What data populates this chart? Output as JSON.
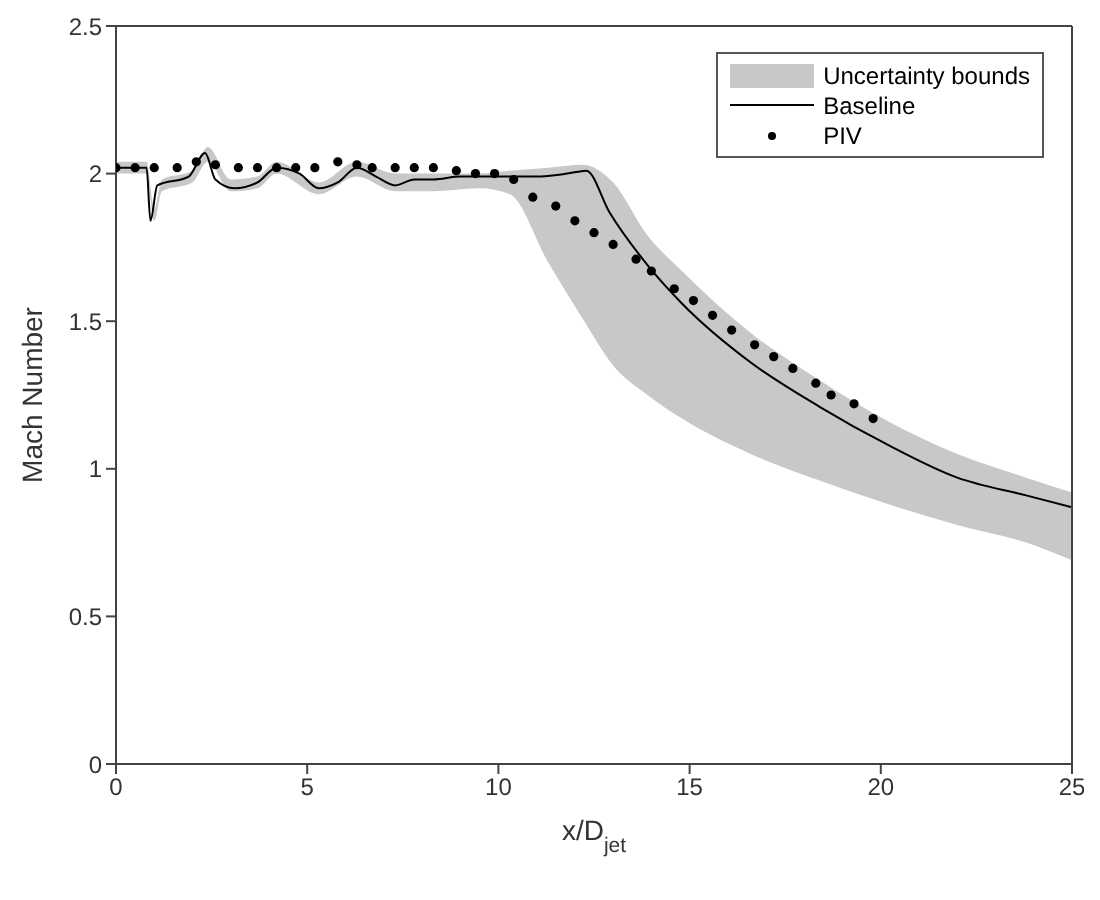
{
  "chart_data": {
    "type": "line",
    "xlabel": "x/D$_{jet}$",
    "ylabel": "Mach Number",
    "xlim": [
      0,
      25
    ],
    "ylim": [
      0,
      2.5
    ],
    "xticks": [
      0,
      5,
      10,
      15,
      20,
      25
    ],
    "yticks": [
      0,
      0.5,
      1,
      1.5,
      2,
      2.5
    ],
    "grid": false,
    "legend": "top right",
    "series": [
      {
        "name": "Uncertainty bounds",
        "type": "area",
        "color": "#c8c8c8",
        "values": [
          null,
          null,
          null,
          null,
          null,
          null,
          null,
          null,
          null,
          null,
          null,
          null,
          null,
          null,
          null,
          null,
          null,
          null,
          null,
          null,
          null,
          null,
          null,
          null,
          null,
          null
        ],
        "x": [
          0,
          0.8,
          1,
          1.2,
          2,
          2.4,
          3,
          3.7,
          4.2,
          5.3,
          6.3,
          7.3,
          8.3,
          9.5,
          10.3,
          11.3,
          12.2,
          13,
          13.9,
          14.8,
          16.6,
          18.4,
          20.2,
          22,
          23.8,
          25
        ],
        "upper": [
          2.04,
          2.04,
          1.88,
          1.98,
          2.01,
          2.09,
          1.98,
          1.99,
          2.04,
          1.97,
          2.04,
          2.0,
          2.0,
          2.0,
          2.01,
          2.02,
          2.03,
          1.97,
          1.79,
          1.67,
          1.46,
          1.3,
          1.16,
          1.05,
          0.97,
          0.92
        ],
        "lower": [
          2.0,
          2.0,
          1.84,
          1.94,
          1.97,
          2.04,
          1.94,
          1.95,
          2.0,
          1.93,
          1.99,
          1.94,
          1.94,
          1.95,
          1.93,
          1.7,
          1.51,
          1.35,
          1.25,
          1.17,
          1.05,
          0.96,
          0.88,
          0.81,
          0.75,
          0.69
        ]
      },
      {
        "name": "Baseline",
        "color": "#000000",
        "marker": "none",
        "line_style": "solid",
        "x": [
          0,
          0.8,
          0.9,
          1.08,
          1.9,
          2.33,
          2.6,
          3.1,
          3.7,
          4.2,
          4.8,
          5.3,
          5.8,
          6.3,
          6.8,
          7.3,
          7.8,
          8.3,
          9,
          10,
          11,
          11.8,
          12.3,
          12.9,
          13.9,
          14.8,
          16.6,
          18.4,
          20.2,
          22,
          23.8,
          25
        ],
        "values": [
          2.02,
          2.02,
          1.84,
          1.96,
          1.99,
          2.07,
          1.98,
          1.95,
          1.97,
          2.02,
          2.0,
          1.95,
          1.97,
          2.02,
          1.99,
          1.96,
          1.98,
          1.98,
          1.99,
          1.99,
          1.99,
          2.0,
          2.01,
          1.87,
          1.69,
          1.56,
          1.36,
          1.21,
          1.08,
          0.97,
          0.91,
          0.87
        ]
      },
      {
        "name": "PIV",
        "type": "scatter",
        "color": "#000000",
        "marker": "circle",
        "x": [
          0,
          0.5,
          1,
          1.6,
          2.1,
          2.6,
          3.2,
          3.7,
          4.2,
          4.7,
          5.2,
          5.8,
          6.3,
          6.7,
          7.3,
          7.8,
          8.3,
          8.9,
          9.4,
          9.9,
          10.4,
          10.9,
          11.5,
          12,
          12.5,
          13,
          13.6,
          14,
          14.6,
          15.1,
          15.6,
          16.1,
          16.7,
          17.2,
          17.7,
          18.3,
          18.7,
          19.3,
          19.8
        ],
        "values": [
          2.02,
          2.02,
          2.02,
          2.02,
          2.04,
          2.03,
          2.02,
          2.02,
          2.02,
          2.02,
          2.02,
          2.04,
          2.03,
          2.02,
          2.02,
          2.02,
          2.02,
          2.01,
          2.0,
          2.0,
          1.98,
          1.92,
          1.89,
          1.84,
          1.8,
          1.76,
          1.71,
          1.67,
          1.61,
          1.57,
          1.52,
          1.47,
          1.42,
          1.38,
          1.34,
          1.29,
          1.25,
          1.22,
          1.17
        ]
      }
    ]
  }
}
